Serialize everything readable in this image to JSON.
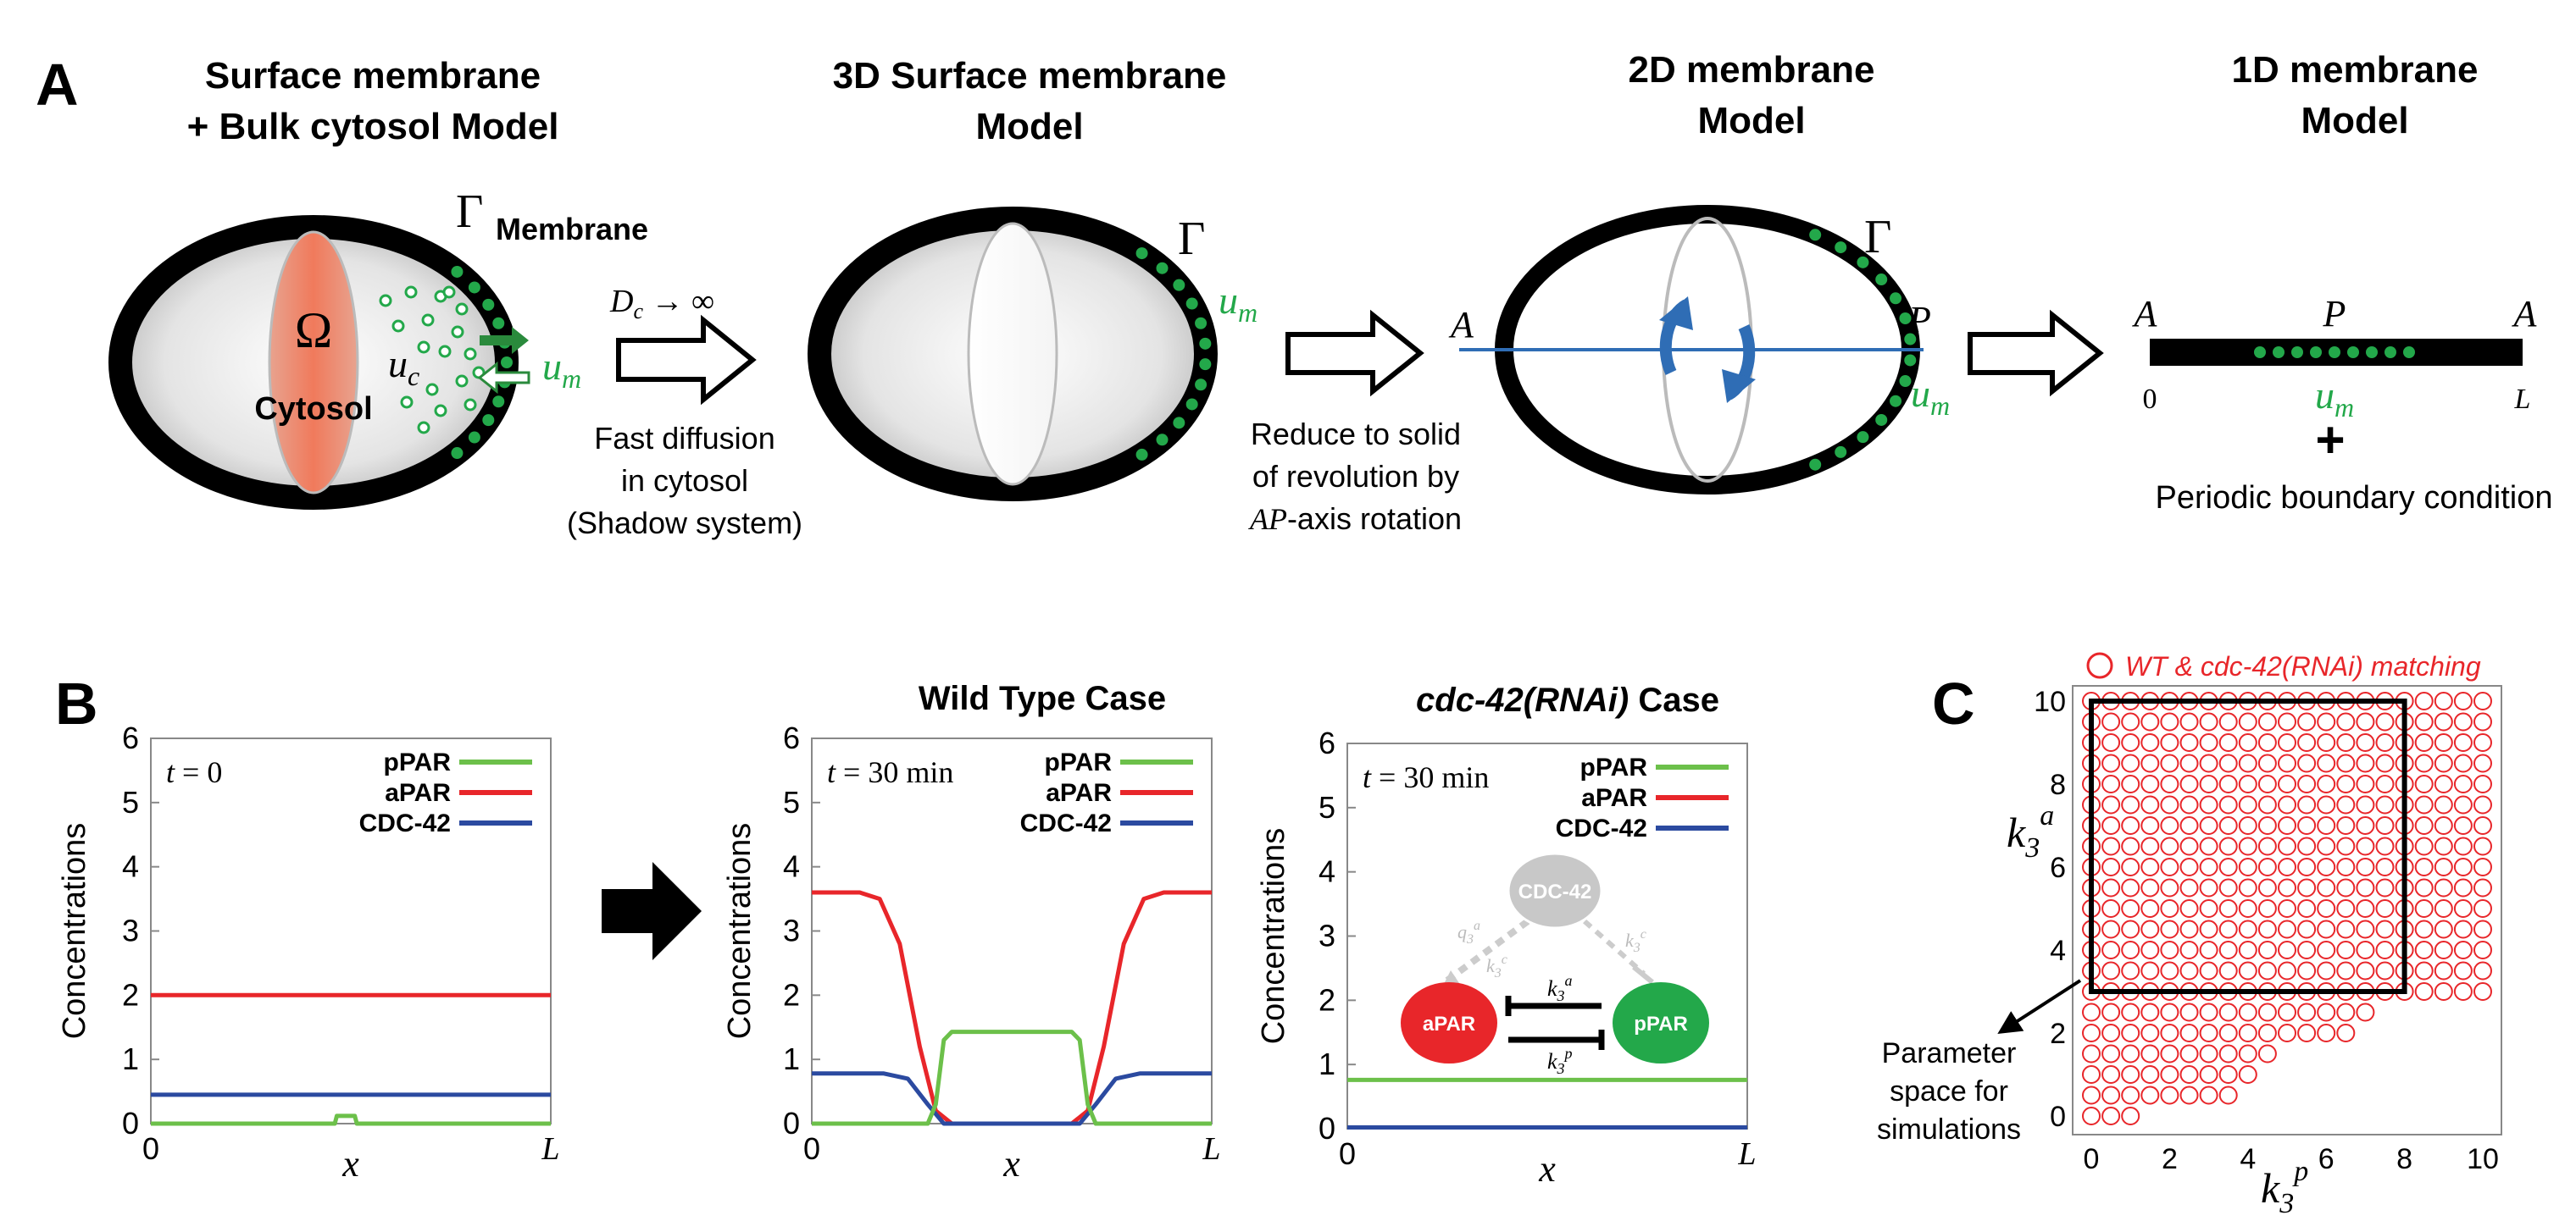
{
  "colors": {
    "ppar": "#6cc04a",
    "apar": "#e8262a",
    "cdc42": "#2b4aa0",
    "membrane_dots": "#23a84a",
    "circles": "#e8262a",
    "arrow_blue": "#2f6db5"
  },
  "panel_a": {
    "letter": "A",
    "models": [
      {
        "line1": "Surface membrane",
        "line2": "+ Bulk cytosol Model"
      },
      {
        "line1": "3D Surface membrane",
        "line2": "Model"
      },
      {
        "line1": "2D membrane",
        "line2": "Model"
      },
      {
        "line1": "1D membrane",
        "line2": "Model"
      }
    ],
    "gamma": "Γ",
    "membrane_label": "Membrane",
    "omega": "Ω",
    "cytosol_label": "Cytosol",
    "uc": "u",
    "uc_sub": "c",
    "um": "u",
    "um_sub": "m",
    "dc_text": "D",
    "dc_sub": "c",
    "dc_arrow": " → ∞",
    "step1": [
      "Fast diffusion",
      "in cytosol",
      "(Shadow system)"
    ],
    "step2_line1": "Reduce to solid",
    "step2_line2": "of revolution by",
    "step2_ap": "AP",
    "step2_tail": "-axis rotation",
    "axis_a": "A",
    "axis_p": "P",
    "bar_a_left": "A",
    "bar_p": "P",
    "bar_a_right": "A",
    "bar_zero": "0",
    "bar_l": "L",
    "plus": "+",
    "periodic": "Periodic boundary condition"
  },
  "panel_b": {
    "letter": "B",
    "ylabel": "Concentrations",
    "xlabel": "x",
    "x_start": "0",
    "x_end": "L",
    "legend": [
      "pPAR",
      "aPAR",
      "CDC-42"
    ],
    "plots": [
      {
        "title": "",
        "time_var": "t",
        "time_text": " = 0"
      },
      {
        "title": "Wild Type Case",
        "time_var": "t",
        "time_text": " = 30 min"
      },
      {
        "title_italic": "cdc-42(RNAi)",
        "title_rest": " Case",
        "time_var": "t",
        "time_text": " = 30 min"
      }
    ],
    "network": {
      "cdc42": "CDC-42",
      "apar": "aPAR",
      "ppar": "pPAR",
      "k3a": "k",
      "k3p": "k",
      "q3a": "q",
      "k3c1": "k",
      "k3c2": "k"
    }
  },
  "chart_data": [
    {
      "type": "line",
      "title": "",
      "annotation": "t = 0",
      "xlabel": "x",
      "ylabel": "Concentrations",
      "xlim": [
        0,
        1
      ],
      "ylim": [
        0,
        6
      ],
      "yticks": [
        "0",
        "1",
        "2",
        "3",
        "4",
        "5",
        "6"
      ],
      "series": [
        {
          "name": "pPAR",
          "x": [
            0,
            0.46,
            0.465,
            0.51,
            0.515,
            1
          ],
          "values": [
            0,
            0,
            0.12,
            0.12,
            0,
            0
          ]
        },
        {
          "name": "aPAR",
          "x": [
            0,
            1
          ],
          "values": [
            2,
            2
          ]
        },
        {
          "name": "CDC-42",
          "x": [
            0,
            1
          ],
          "values": [
            0.45,
            0.45
          ]
        }
      ]
    },
    {
      "type": "line",
      "title": "Wild Type Case",
      "annotation": "t = 30 min",
      "xlabel": "x",
      "ylabel": "Concentrations",
      "xlim": [
        0,
        1
      ],
      "ylim": [
        0,
        6
      ],
      "yticks": [
        "0",
        "1",
        "2",
        "3",
        "4",
        "5",
        "6"
      ],
      "series": [
        {
          "name": "pPAR",
          "x": [
            0,
            0.29,
            0.31,
            0.33,
            0.35,
            0.65,
            0.67,
            0.69,
            0.71,
            1
          ],
          "values": [
            0,
            0,
            0.3,
            1.3,
            1.43,
            1.43,
            1.3,
            0.3,
            0,
            0
          ]
        },
        {
          "name": "aPAR",
          "x": [
            0,
            0.12,
            0.17,
            0.22,
            0.27,
            0.31,
            0.35,
            0.65,
            0.69,
            0.73,
            0.78,
            0.83,
            0.88,
            1
          ],
          "values": [
            3.6,
            3.6,
            3.5,
            2.8,
            1.2,
            0.2,
            0,
            0,
            0.2,
            1.2,
            2.8,
            3.5,
            3.6,
            3.6
          ]
        },
        {
          "name": "CDC-42",
          "x": [
            0,
            0.18,
            0.24,
            0.29,
            0.33,
            0.67,
            0.71,
            0.76,
            0.82,
            1
          ],
          "values": [
            0.78,
            0.78,
            0.7,
            0.3,
            0,
            0,
            0.3,
            0.7,
            0.78,
            0.78
          ]
        }
      ]
    },
    {
      "type": "line",
      "title": "cdc-42(RNAi) Case",
      "annotation": "t = 30 min",
      "xlabel": "x",
      "ylabel": "Concentrations",
      "xlim": [
        0,
        1
      ],
      "ylim": [
        0,
        6
      ],
      "yticks": [
        "0",
        "1",
        "2",
        "3",
        "4",
        "5",
        "6"
      ],
      "series": [
        {
          "name": "pPAR",
          "x": [
            0,
            1
          ],
          "values": [
            0.76,
            0.76
          ]
        },
        {
          "name": "aPAR",
          "x": [
            0,
            1
          ],
          "values": [
            0.02,
            0.02
          ]
        },
        {
          "name": "CDC-42",
          "x": [
            0,
            1
          ],
          "values": [
            0.02,
            0.02
          ]
        }
      ]
    },
    {
      "type": "scatter",
      "title": "",
      "legend": "WT & cdc-42(RNAi) matching",
      "xlabel": "k3^p",
      "ylabel": "k3^a",
      "xlim": [
        0,
        10
      ],
      "ylim": [
        0,
        10
      ],
      "xticks": [
        "0",
        "2",
        "4",
        "6",
        "8",
        "10"
      ],
      "yticks": [
        "0",
        "2",
        "4",
        "6",
        "8",
        "10"
      ],
      "step": 0.5,
      "row_extents": [
        {
          "y": 0.0,
          "xmax": 1.0
        },
        {
          "y": 0.5,
          "xmax": 3.5
        },
        {
          "y": 1.0,
          "xmax": 4.0
        },
        {
          "y": 1.5,
          "xmax": 4.5
        },
        {
          "y": 2.0,
          "xmax": 6.5
        },
        {
          "y": 2.5,
          "xmax": 7.0
        },
        {
          "y": 3.0,
          "xmax": 10.0
        },
        {
          "y": 3.5,
          "xmax": 10.0
        },
        {
          "y": 4.0,
          "xmax": 10.0
        },
        {
          "y": 4.5,
          "xmax": 10.0
        },
        {
          "y": 5.0,
          "xmax": 10.0
        },
        {
          "y": 5.5,
          "xmax": 10.0
        },
        {
          "y": 6.0,
          "xmax": 10.0
        },
        {
          "y": 6.5,
          "xmax": 10.0
        },
        {
          "y": 7.0,
          "xmax": 10.0
        },
        {
          "y": 7.5,
          "xmax": 10.0
        },
        {
          "y": 8.0,
          "xmax": 10.0
        },
        {
          "y": 8.5,
          "xmax": 10.0
        },
        {
          "y": 9.0,
          "xmax": 10.0
        },
        {
          "y": 9.5,
          "xmax": 10.0
        },
        {
          "y": 10.0,
          "xmax": 10.0
        }
      ],
      "box": {
        "x": [
          0,
          8
        ],
        "y": [
          3,
          10
        ]
      },
      "box_note": [
        "Parameter",
        "space for",
        "simulations"
      ]
    }
  ],
  "panel_c": {
    "letter": "C",
    "legend": "WT & cdc-42(RNAi) matching",
    "ylabel_k": "k",
    "ylabel_sub": "3",
    "ylabel_sup": "a",
    "xlabel_k": "k",
    "xlabel_sub": "3",
    "xlabel_sup": "p",
    "note": [
      "Parameter",
      "space for",
      "simulations"
    ]
  }
}
